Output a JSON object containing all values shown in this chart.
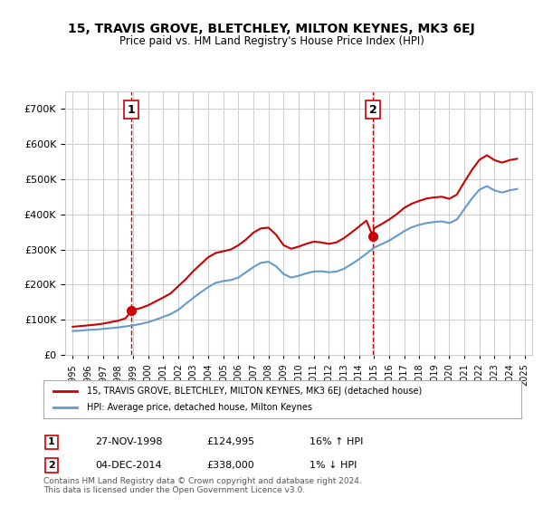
{
  "title": "15, TRAVIS GROVE, BLETCHLEY, MILTON KEYNES, MK3 6EJ",
  "subtitle": "Price paid vs. HM Land Registry's House Price Index (HPI)",
  "legend_line1": "15, TRAVIS GROVE, BLETCHLEY, MILTON KEYNES, MK3 6EJ (detached house)",
  "legend_line2": "HPI: Average price, detached house, Milton Keynes",
  "annotation1_label": "1",
  "annotation1_date": "27-NOV-1998",
  "annotation1_price": "£124,995",
  "annotation1_hpi": "16% ↑ HPI",
  "annotation2_label": "2",
  "annotation2_date": "04-DEC-2014",
  "annotation2_price": "£338,000",
  "annotation2_hpi": "1% ↓ HPI",
  "footer": "Contains HM Land Registry data © Crown copyright and database right 2024.\nThis data is licensed under the Open Government Licence v3.0.",
  "sale_color": "#cc0000",
  "hpi_color": "#6699cc",
  "background_color": "#ffffff",
  "grid_color": "#cccccc",
  "ylim": [
    0,
    750000
  ],
  "yticks": [
    0,
    100000,
    200000,
    300000,
    400000,
    500000,
    600000,
    700000
  ],
  "sale_years": [
    1998.9,
    2014.92
  ],
  "sale_prices": [
    124995,
    338000
  ],
  "hpi_years": [
    1995.0,
    1995.5,
    1996.0,
    1996.5,
    1997.0,
    1997.5,
    1998.0,
    1998.5,
    1999.0,
    1999.5,
    2000.0,
    2000.5,
    2001.0,
    2001.5,
    2002.0,
    2002.5,
    2003.0,
    2003.5,
    2004.0,
    2004.5,
    2005.0,
    2005.5,
    2006.0,
    2006.5,
    2007.0,
    2007.5,
    2008.0,
    2008.5,
    2009.0,
    2009.5,
    2010.0,
    2010.5,
    2011.0,
    2011.5,
    2012.0,
    2012.5,
    2013.0,
    2013.5,
    2014.0,
    2014.5,
    2015.0,
    2015.5,
    2016.0,
    2016.5,
    2017.0,
    2017.5,
    2018.0,
    2018.5,
    2019.0,
    2019.5,
    2020.0,
    2020.5,
    2021.0,
    2021.5,
    2022.0,
    2022.5,
    2023.0,
    2023.5,
    2024.0,
    2024.5
  ],
  "hpi_values": [
    68000,
    69000,
    71000,
    72000,
    74000,
    76000,
    78000,
    81000,
    84000,
    88000,
    93000,
    100000,
    108000,
    116000,
    128000,
    145000,
    162000,
    178000,
    193000,
    205000,
    210000,
    213000,
    220000,
    235000,
    250000,
    262000,
    265000,
    252000,
    230000,
    220000,
    225000,
    232000,
    237000,
    238000,
    235000,
    237000,
    245000,
    258000,
    272000,
    288000,
    305000,
    315000,
    325000,
    338000,
    352000,
    363000,
    370000,
    375000,
    378000,
    380000,
    375000,
    385000,
    415000,
    445000,
    470000,
    480000,
    468000,
    462000,
    468000,
    472000
  ],
  "price_line_years": [
    1995.0,
    1995.5,
    1996.0,
    1996.5,
    1997.0,
    1997.5,
    1998.0,
    1998.5,
    1998.9,
    1999.0,
    1999.5,
    2000.0,
    2000.5,
    2001.0,
    2001.5,
    2002.0,
    2002.5,
    2003.0,
    2003.5,
    2004.0,
    2004.5,
    2005.0,
    2005.5,
    2006.0,
    2006.5,
    2007.0,
    2007.5,
    2008.0,
    2008.5,
    2009.0,
    2009.5,
    2010.0,
    2010.5,
    2011.0,
    2011.5,
    2012.0,
    2012.5,
    2013.0,
    2013.5,
    2014.0,
    2014.5,
    2014.92,
    2015.0,
    2015.5,
    2016.0,
    2016.5,
    2017.0,
    2017.5,
    2018.0,
    2018.5,
    2019.0,
    2019.5,
    2020.0,
    2020.5,
    2021.0,
    2021.5,
    2022.0,
    2022.5,
    2023.0,
    2023.5,
    2024.0,
    2024.5
  ],
  "price_line_values": [
    80000,
    82000,
    84000,
    86000,
    89000,
    93000,
    97000,
    104000,
    124995,
    128000,
    133000,
    141000,
    152000,
    163000,
    175000,
    195000,
    215000,
    238000,
    258000,
    278000,
    290000,
    295000,
    300000,
    312000,
    328000,
    348000,
    360000,
    362000,
    342000,
    312000,
    302000,
    308000,
    316000,
    322000,
    320000,
    316000,
    320000,
    332000,
    348000,
    365000,
    382000,
    338000,
    360000,
    372000,
    385000,
    400000,
    418000,
    430000,
    438000,
    445000,
    448000,
    450000,
    444000,
    456000,
    492000,
    526000,
    555000,
    568000,
    554000,
    547000,
    554000,
    558000
  ],
  "vline1_x": 1998.9,
  "vline2_x": 2014.92,
  "vline_color": "#cc0000",
  "vline_style": "--",
  "xtick_years": [
    1995,
    1996,
    1997,
    1998,
    1999,
    2000,
    2001,
    2002,
    2003,
    2004,
    2005,
    2006,
    2007,
    2008,
    2009,
    2010,
    2011,
    2012,
    2013,
    2014,
    2015,
    2016,
    2017,
    2018,
    2019,
    2020,
    2021,
    2022,
    2023,
    2024,
    2025
  ]
}
